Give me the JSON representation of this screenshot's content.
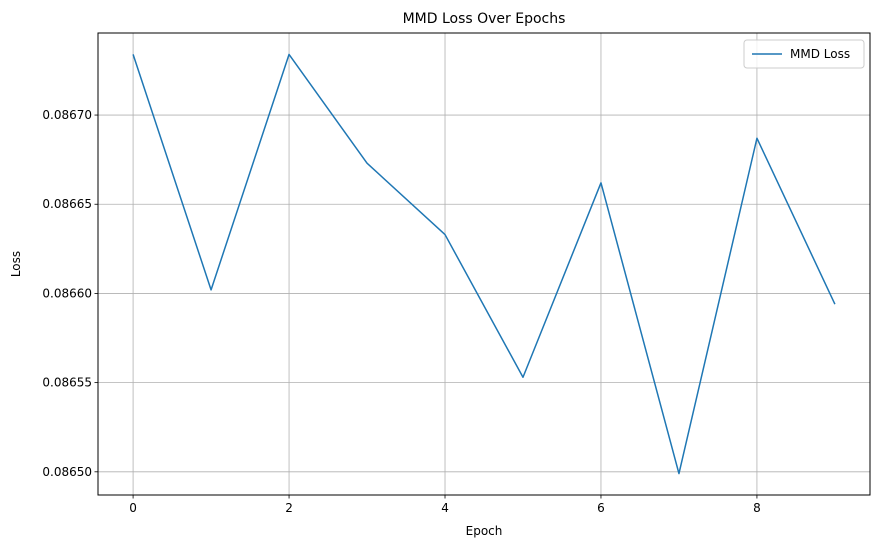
{
  "chart_data": {
    "type": "line",
    "title": "MMD Loss Over Epochs",
    "xlabel": "Epoch",
    "ylabel": "Loss",
    "x": [
      0,
      1,
      2,
      3,
      4,
      5,
      6,
      7,
      8,
      9
    ],
    "series": [
      {
        "name": "MMD Loss",
        "color": "#1f77b4",
        "values": [
          0.086734,
          0.086602,
          0.086734,
          0.086673,
          0.086633,
          0.086553,
          0.086662,
          0.086499,
          0.086687,
          0.086594
        ]
      }
    ],
    "xlim": [
      -0.45,
      9.45
    ],
    "ylim": [
      0.086487,
      0.086746
    ],
    "x_ticks": [
      0,
      2,
      4,
      6,
      8
    ],
    "x_tick_labels": [
      "0",
      "2",
      "4",
      "6",
      "8"
    ],
    "y_ticks": [
      0.0865,
      0.08655,
      0.0866,
      0.08665,
      0.0867
    ],
    "y_tick_labels": [
      "0.08650",
      "0.08655",
      "0.08660",
      "0.08665",
      "0.08670"
    ],
    "grid": true,
    "legend_position": "top-right"
  }
}
